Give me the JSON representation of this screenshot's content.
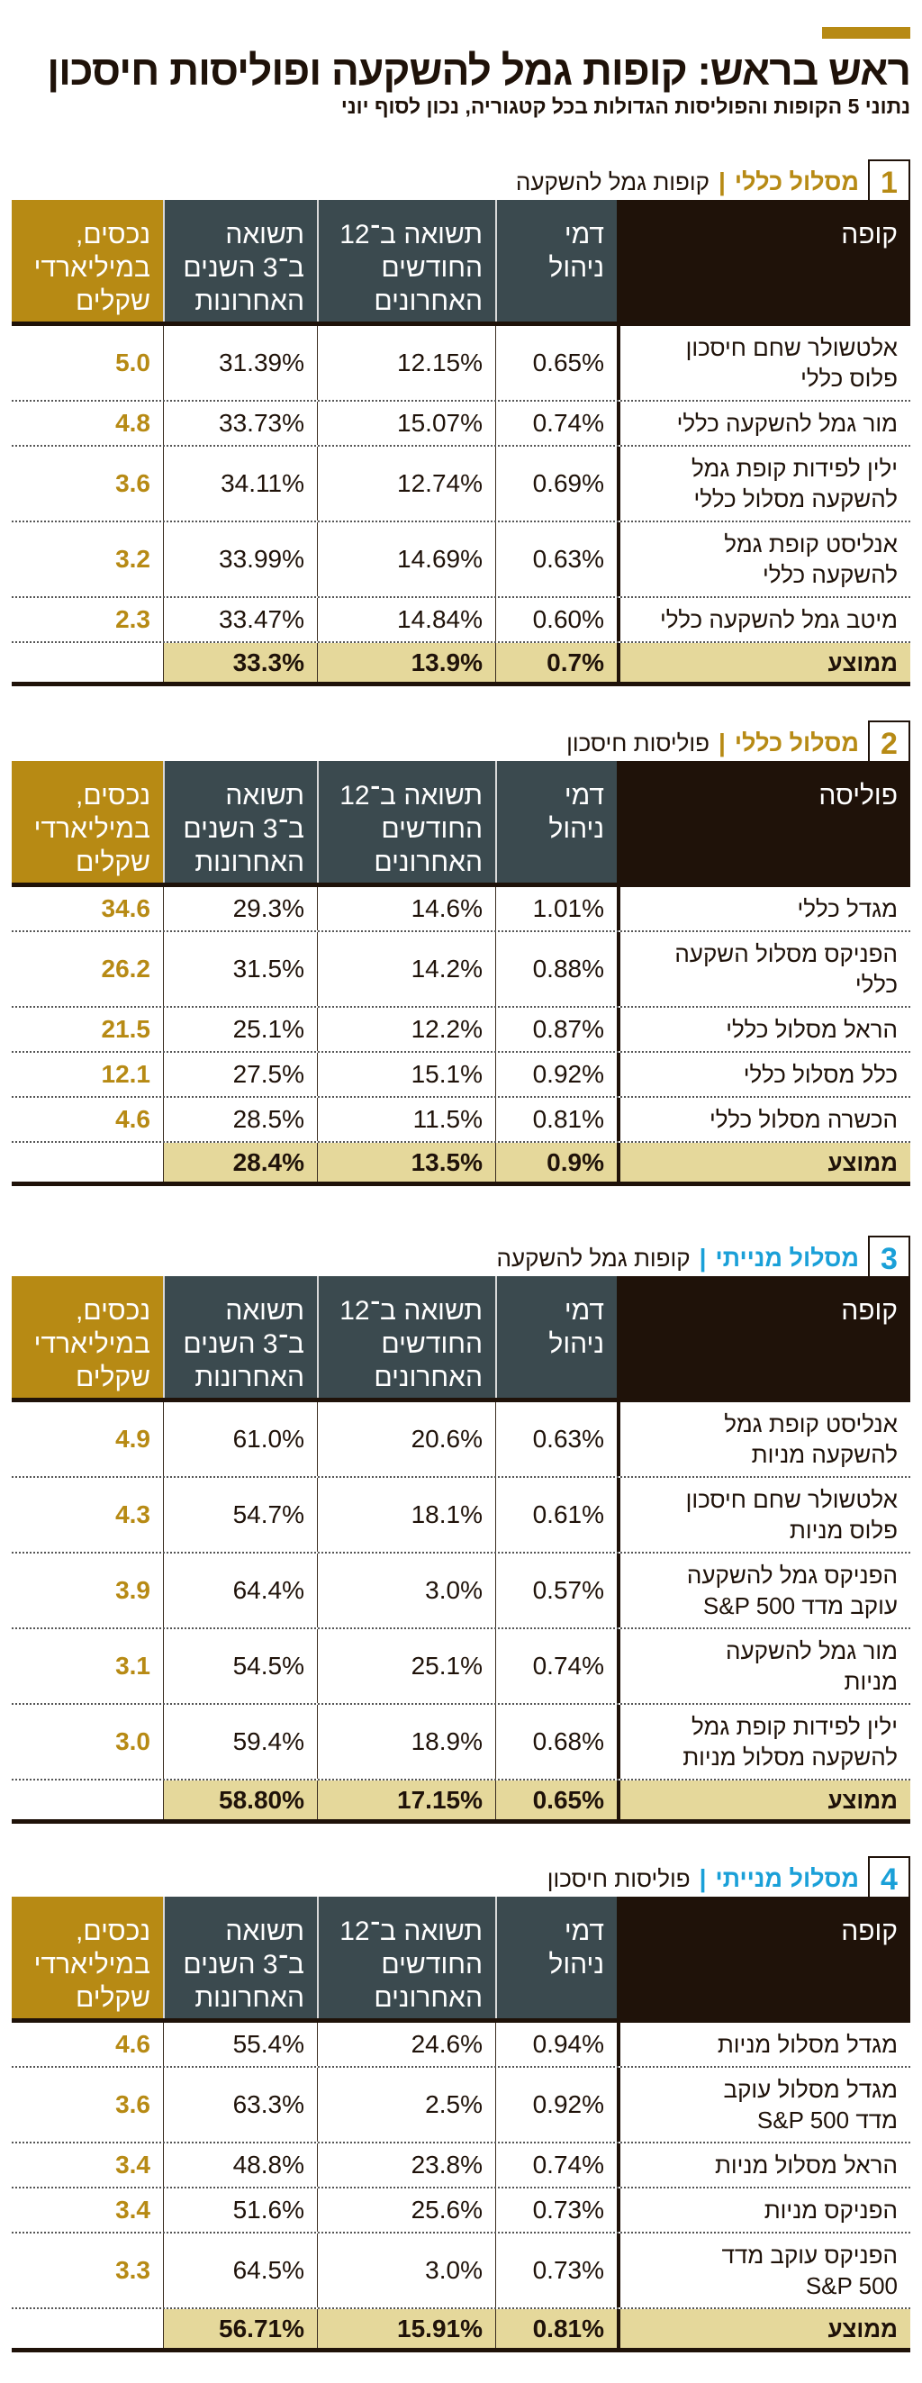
{
  "title": "ראש בראש: קופות גמל להשקעה ופוליסות חיסכון",
  "subtitle": "נתוני 5 הקופות והפוליסות הגדולות בכל קטגוריה, נכון לסוף יוני",
  "colors": {
    "gold": "#b78a14",
    "blue": "#1aa0d8",
    "dark": "#1f1209",
    "slate": "#3b4a4f",
    "avg_bg": "#e5d89b"
  },
  "columns": {
    "fee": "דמי\nניהול",
    "ret12": "תשואה ב־12\nהחודשים\nהאחרונים",
    "ret3y": "תשואה\nב־3 השנים\nהאחרונות",
    "assets": "נכסים,\nבמיליארדי\nשקלים"
  },
  "avg_label": "ממוצע",
  "sections": [
    {
      "number": "1",
      "track": "מסלול כללי",
      "separator": "|",
      "category": "קופות גמל להשקעה",
      "accent": "#b78a14",
      "first_col": "קופה",
      "rows": [
        {
          "name": "אלטשולר שחם חיסכון\nפלוס כללי",
          "fee": "0.65%",
          "ret12": "12.15%",
          "ret3y": "31.39%",
          "assets": "5.0"
        },
        {
          "name": "מור גמל להשקעה כללי",
          "fee": "0.74%",
          "ret12": "15.07%",
          "ret3y": "33.73%",
          "assets": "4.8"
        },
        {
          "name": "ילין לפידות קופת גמל\nלהשקעה מסלול כללי",
          "fee": "0.69%",
          "ret12": "12.74%",
          "ret3y": "34.11%",
          "assets": "3.6"
        },
        {
          "name": "אנליסט קופת גמל\nלהשקעה כללי",
          "fee": "0.63%",
          "ret12": "14.69%",
          "ret3y": "33.99%",
          "assets": "3.2"
        },
        {
          "name": "מיטב גמל להשקעה כללי",
          "fee": "0.60%",
          "ret12": "14.84%",
          "ret3y": "33.47%",
          "assets": "2.3"
        }
      ],
      "avg": {
        "fee": "0.7%",
        "ret12": "13.9%",
        "ret3y": "33.3%"
      }
    },
    {
      "number": "2",
      "track": "מסלול כללי",
      "separator": "|",
      "category": "פוליסות חיסכון",
      "accent": "#b78a14",
      "first_col": "פוליסה",
      "rows": [
        {
          "name": "מגדל כללי",
          "fee": "1.01%",
          "ret12": "14.6%",
          "ret3y": "29.3%",
          "assets": "34.6"
        },
        {
          "name": "הפניקס מסלול השקעה\nכללי",
          "fee": "0.88%",
          "ret12": "14.2%",
          "ret3y": "31.5%",
          "assets": "26.2"
        },
        {
          "name": "הראל מסלול כללי",
          "fee": "0.87%",
          "ret12": "12.2%",
          "ret3y": "25.1%",
          "assets": "21.5"
        },
        {
          "name": "כלל מסלול כללי",
          "fee": "0.92%",
          "ret12": "15.1%",
          "ret3y": "27.5%",
          "assets": "12.1"
        },
        {
          "name": "הכשרה מסלול כללי",
          "fee": "0.81%",
          "ret12": "11.5%",
          "ret3y": "28.5%",
          "assets": "4.6"
        }
      ],
      "avg": {
        "fee": "0.9%",
        "ret12": "13.5%",
        "ret3y": "28.4%"
      }
    },
    {
      "number": "3",
      "track": "מסלול מנייתי",
      "separator": "|",
      "category": "קופות גמל להשקעה",
      "accent": "#1aa0d8",
      "first_col": "קופה",
      "rows": [
        {
          "name": "אנליסט קופת גמל\nלהשקעה מניות",
          "fee": "0.63%",
          "ret12": "20.6%",
          "ret3y": "61.0%",
          "assets": "4.9"
        },
        {
          "name": "אלטשולר שחם חיסכון\nפלוס מניות",
          "fee": "0.61%",
          "ret12": "18.1%",
          "ret3y": "54.7%",
          "assets": "4.3"
        },
        {
          "name": "הפניקס גמל להשקעה\nעוקב מדד S&P 500",
          "fee": "0.57%",
          "ret12": "3.0%",
          "ret3y": "64.4%",
          "assets": "3.9"
        },
        {
          "name": "מור גמל להשקעה\nמניות",
          "fee": "0.74%",
          "ret12": "25.1%",
          "ret3y": "54.5%",
          "assets": "3.1"
        },
        {
          "name": "ילין לפידות קופת גמל\nלהשקעה מסלול מניות",
          "fee": "0.68%",
          "ret12": "18.9%",
          "ret3y": "59.4%",
          "assets": "3.0"
        }
      ],
      "avg": {
        "fee": "0.65%",
        "ret12": "17.15%",
        "ret3y": "58.80%"
      }
    },
    {
      "number": "4",
      "track": "מסלול מנייתי",
      "separator": "|",
      "category": "פוליסות חיסכון",
      "accent": "#1aa0d8",
      "first_col": "קופה",
      "rows": [
        {
          "name": "מגדל מסלול מניות",
          "fee": "0.94%",
          "ret12": "24.6%",
          "ret3y": "55.4%",
          "assets": "4.6"
        },
        {
          "name": "מגדל מסלול עוקב\nמדד S&P 500",
          "fee": "0.92%",
          "ret12": "2.5%",
          "ret3y": "63.3%",
          "assets": "3.6"
        },
        {
          "name": "הראל מסלול מניות",
          "fee": "0.74%",
          "ret12": "23.8%",
          "ret3y": "48.8%",
          "assets": "3.4"
        },
        {
          "name": "הפניקס מניות",
          "fee": "0.73%",
          "ret12": "25.6%",
          "ret3y": "51.6%",
          "assets": "3.4"
        },
        {
          "name": "הפניקס  עוקב מדד\nS&P 500",
          "fee": "0.73%",
          "ret12": "3.0%",
          "ret3y": "64.5%",
          "assets": "3.3"
        }
      ],
      "avg": {
        "fee": "0.81%",
        "ret12": "15.91%",
        "ret3y": "56.71%"
      }
    }
  ]
}
